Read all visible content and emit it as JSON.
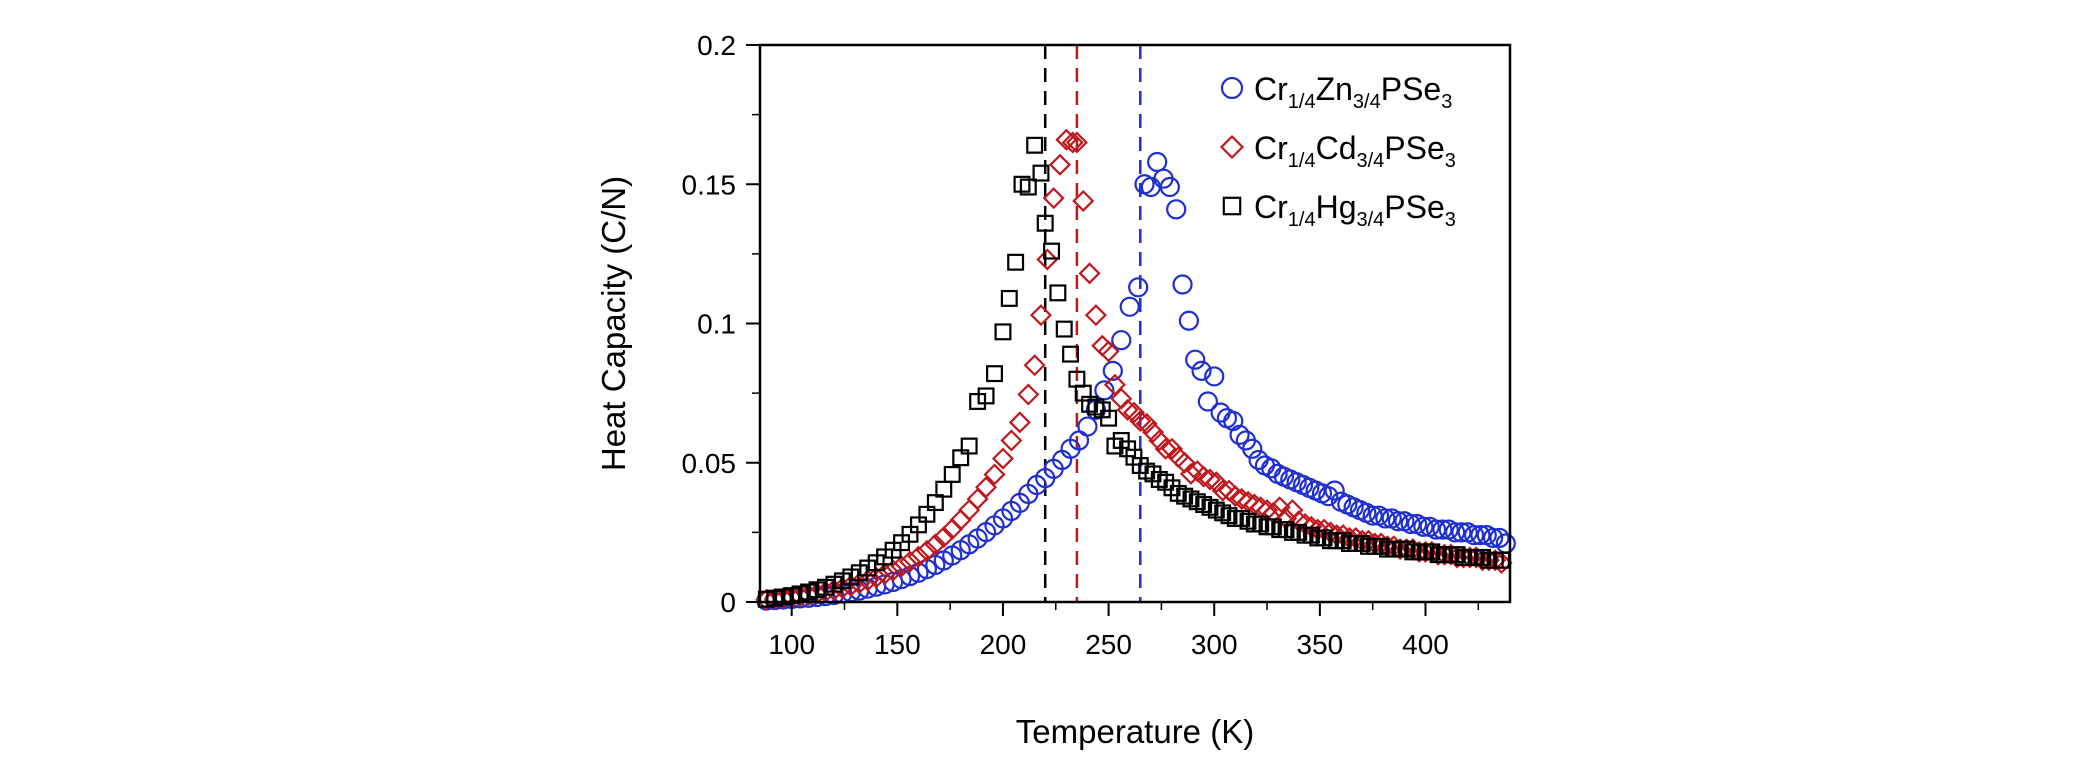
{
  "chart_data": {
    "type": "scatter",
    "xlabel": "Temperature (K)",
    "ylabel": "Heat Capacity (C/N)",
    "xlim": [
      85,
      440
    ],
    "ylim": [
      0,
      0.2
    ],
    "xticks": [
      100,
      150,
      200,
      250,
      300,
      350,
      400
    ],
    "xtick_labels": [
      "100",
      "150",
      "200",
      "250",
      "300",
      "350",
      "400"
    ],
    "yticks": [
      0,
      0.05,
      0.1,
      0.15,
      0.2
    ],
    "ytick_labels": [
      "0",
      "0.05",
      "0.1",
      "0.15",
      "0.2"
    ],
    "grid": false,
    "legend_position": "top-right",
    "vlines": [
      {
        "x": 220,
        "color": "#000000",
        "style": "dashed"
      },
      {
        "x": 235,
        "color": "#c0171c",
        "style": "dashed"
      },
      {
        "x": 265,
        "color": "#1f2fd0",
        "style": "dashed"
      }
    ],
    "series": [
      {
        "name": "Cr1/4Zn3/4PSe3",
        "legend_parts": [
          {
            "t": "Cr",
            "sub": false
          },
          {
            "t": "1/4",
            "sub": true
          },
          {
            "t": "Zn",
            "sub": false
          },
          {
            "t": "3/4",
            "sub": true
          },
          {
            "t": "PSe",
            "sub": false
          },
          {
            "t": "3",
            "sub": true
          }
        ],
        "marker": "circle",
        "color": "#1f2fd0",
        "x": [
          88,
          92,
          96,
          100,
          104,
          108,
          112,
          116,
          120,
          124,
          128,
          132,
          136,
          140,
          144,
          148,
          152,
          156,
          160,
          164,
          168,
          172,
          176,
          180,
          184,
          188,
          192,
          196,
          200,
          204,
          208,
          212,
          216,
          220,
          224,
          228,
          232,
          236,
          240,
          244,
          248,
          252,
          256,
          260,
          264,
          267,
          270,
          273,
          276,
          279,
          282,
          285,
          288,
          291,
          294,
          297,
          300,
          303,
          306,
          309,
          312,
          315,
          318,
          321,
          324,
          327,
          330,
          333,
          336,
          339,
          342,
          345,
          348,
          351,
          354,
          357,
          360,
          363,
          366,
          369,
          372,
          375,
          378,
          381,
          384,
          387,
          390,
          393,
          396,
          399,
          402,
          405,
          408,
          411,
          414,
          417,
          420,
          423,
          426,
          429,
          432,
          435,
          438
        ],
        "y": [
          0.0005,
          0.0007,
          0.0009,
          0.0011,
          0.0013,
          0.0015,
          0.0018,
          0.0021,
          0.0025,
          0.003,
          0.0035,
          0.0041,
          0.0048,
          0.0055,
          0.0063,
          0.0072,
          0.0082,
          0.0093,
          0.0105,
          0.0118,
          0.0133,
          0.0149,
          0.0167,
          0.0186,
          0.0207,
          0.0228,
          0.0251,
          0.0275,
          0.03,
          0.0327,
          0.0356,
          0.0388,
          0.042,
          0.0445,
          0.0478,
          0.051,
          0.055,
          0.058,
          0.063,
          0.069,
          0.076,
          0.083,
          0.094,
          0.106,
          0.113,
          0.15,
          0.149,
          0.158,
          0.152,
          0.149,
          0.141,
          0.114,
          0.101,
          0.087,
          0.083,
          0.072,
          0.081,
          0.068,
          0.066,
          0.065,
          0.06,
          0.058,
          0.055,
          0.051,
          0.049,
          0.048,
          0.046,
          0.045,
          0.044,
          0.043,
          0.042,
          0.041,
          0.04,
          0.039,
          0.038,
          0.04,
          0.036,
          0.035,
          0.034,
          0.033,
          0.032,
          0.031,
          0.031,
          0.03,
          0.03,
          0.029,
          0.029,
          0.028,
          0.028,
          0.027,
          0.027,
          0.026,
          0.026,
          0.026,
          0.025,
          0.025,
          0.025,
          0.024,
          0.024,
          0.024,
          0.023,
          0.023,
          0.021
        ]
      },
      {
        "name": "Cr1/4Cd3/4PSe3",
        "legend_parts": [
          {
            "t": "Cr",
            "sub": false
          },
          {
            "t": "1/4",
            "sub": true
          },
          {
            "t": "Cd",
            "sub": false
          },
          {
            "t": "3/4",
            "sub": true
          },
          {
            "t": "PSe",
            "sub": false
          },
          {
            "t": "3",
            "sub": true
          }
        ],
        "marker": "diamond",
        "color": "#c0171c",
        "x": [
          88,
          92,
          96,
          100,
          104,
          108,
          112,
          116,
          120,
          124,
          128,
          132,
          136,
          140,
          144,
          148,
          152,
          156,
          160,
          164,
          168,
          172,
          176,
          180,
          184,
          188,
          192,
          196,
          200,
          204,
          208,
          212,
          215,
          218,
          221,
          224,
          227,
          230,
          233,
          235,
          238,
          241,
          244,
          247,
          250,
          253,
          256,
          259,
          262,
          265,
          268,
          271,
          274,
          277,
          280,
          283,
          286,
          289,
          292,
          295,
          298,
          301,
          304,
          307,
          310,
          313,
          316,
          319,
          322,
          325,
          328,
          331,
          334,
          337,
          340,
          343,
          346,
          349,
          352,
          355,
          358,
          361,
          364,
          367,
          370,
          373,
          376,
          379,
          382,
          385,
          388,
          391,
          394,
          397,
          400,
          403,
          406,
          409,
          412,
          415,
          418,
          421,
          424,
          427,
          430,
          433,
          436
        ],
        "y": [
          0.0008,
          0.0011,
          0.0014,
          0.0017,
          0.0021,
          0.0025,
          0.003,
          0.0036,
          0.0043,
          0.005,
          0.0058,
          0.0067,
          0.0077,
          0.0088,
          0.01,
          0.0113,
          0.0128,
          0.0145,
          0.0163,
          0.0184,
          0.0207,
          0.0233,
          0.0262,
          0.0295,
          0.033,
          0.037,
          0.0412,
          0.0458,
          0.0515,
          0.058,
          0.0645,
          0.0745,
          0.085,
          0.103,
          0.123,
          0.145,
          0.157,
          0.166,
          0.165,
          0.165,
          0.144,
          0.118,
          0.103,
          0.092,
          0.09,
          0.078,
          0.073,
          0.069,
          0.068,
          0.065,
          0.064,
          0.061,
          0.058,
          0.055,
          0.055,
          0.052,
          0.05,
          0.046,
          0.047,
          0.045,
          0.044,
          0.043,
          0.04,
          0.04,
          0.038,
          0.037,
          0.036,
          0.035,
          0.034,
          0.033,
          0.032,
          0.034,
          0.03,
          0.033,
          0.029,
          0.028,
          0.027,
          0.026,
          0.026,
          0.025,
          0.024,
          0.024,
          0.023,
          0.023,
          0.022,
          0.022,
          0.021,
          0.021,
          0.02,
          0.02,
          0.019,
          0.019,
          0.019,
          0.018,
          0.018,
          0.018,
          0.017,
          0.017,
          0.017,
          0.016,
          0.016,
          0.016,
          0.016,
          0.015,
          0.015,
          0.015,
          0.014
        ]
      },
      {
        "name": "Cr1/4Hg3/4PSe3",
        "legend_parts": [
          {
            "t": "Cr",
            "sub": false
          },
          {
            "t": "1/4",
            "sub": true
          },
          {
            "t": "Hg",
            "sub": false
          },
          {
            "t": "3/4",
            "sub": true
          },
          {
            "t": "PSe",
            "sub": false
          },
          {
            "t": "3",
            "sub": true
          }
        ],
        "marker": "square",
        "color": "#000000",
        "x": [
          88,
          92,
          96,
          100,
          104,
          108,
          112,
          116,
          120,
          124,
          128,
          132,
          136,
          140,
          144,
          148,
          152,
          156,
          160,
          164,
          168,
          172,
          176,
          180,
          184,
          188,
          192,
          196,
          200,
          203,
          206,
          209,
          212,
          215,
          218,
          220,
          223,
          226,
          229,
          232,
          235,
          238,
          241,
          244,
          247,
          250,
          253,
          256,
          259,
          262,
          265,
          268,
          271,
          274,
          277,
          280,
          283,
          286,
          289,
          292,
          295,
          298,
          301,
          304,
          307,
          310,
          313,
          316,
          319,
          322,
          325,
          328,
          331,
          334,
          337,
          340,
          343,
          346,
          349,
          352,
          355,
          358,
          361,
          364,
          367,
          370,
          373,
          376,
          379,
          382,
          385,
          388,
          391,
          394,
          397,
          400,
          403,
          406,
          409,
          412,
          415,
          418,
          421,
          424,
          427,
          430,
          433,
          436
        ],
        "y": [
          0.001,
          0.0014,
          0.0018,
          0.0023,
          0.0029,
          0.0036,
          0.0044,
          0.0053,
          0.0064,
          0.0076,
          0.009,
          0.0105,
          0.0122,
          0.0141,
          0.0162,
          0.0186,
          0.0213,
          0.0243,
          0.0277,
          0.0315,
          0.0357,
          0.0405,
          0.0458,
          0.0518,
          0.056,
          0.072,
          0.074,
          0.082,
          0.097,
          0.109,
          0.122,
          0.15,
          0.149,
          0.164,
          0.154,
          0.136,
          0.126,
          0.111,
          0.098,
          0.089,
          0.08,
          0.075,
          0.071,
          0.07,
          0.069,
          0.066,
          0.056,
          0.058,
          0.055,
          0.052,
          0.049,
          0.047,
          0.046,
          0.044,
          0.043,
          0.041,
          0.039,
          0.038,
          0.037,
          0.036,
          0.035,
          0.034,
          0.033,
          0.032,
          0.031,
          0.03,
          0.03,
          0.029,
          0.028,
          0.028,
          0.027,
          0.027,
          0.026,
          0.026,
          0.025,
          0.025,
          0.024,
          0.024,
          0.023,
          0.023,
          0.022,
          0.022,
          0.022,
          0.021,
          0.021,
          0.021,
          0.02,
          0.02,
          0.02,
          0.019,
          0.019,
          0.019,
          0.019,
          0.018,
          0.018,
          0.018,
          0.018,
          0.017,
          0.017,
          0.017,
          0.017,
          0.016,
          0.016,
          0.016,
          0.016,
          0.015,
          0.015,
          0.015
        ]
      }
    ]
  }
}
